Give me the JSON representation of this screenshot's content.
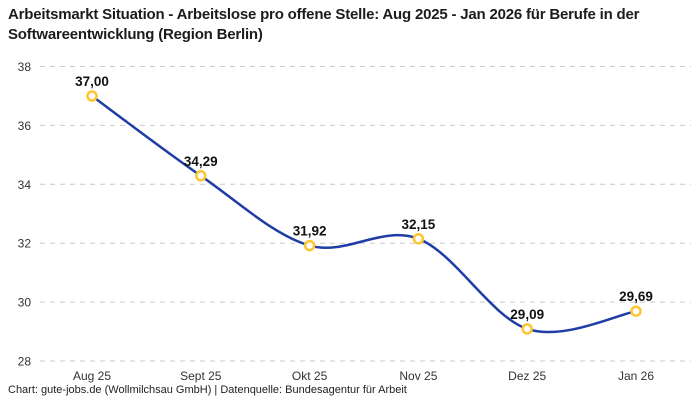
{
  "title": "Arbeitsmarkt Situation - Arbeitslose pro offene Stelle: Aug 2025 - Jan 2026 für Berufe in der Softwareentwicklung (Region Berlin)",
  "footer": "Chart: gute-jobs.de (Wollmilchsau GmbH) | Datenquelle: Bundesagentur für Arbeit",
  "colors": {
    "background": "#ffffff",
    "line": "#1f3da6",
    "marker_ring": "#ffc432",
    "marker_fill": "#ffffff",
    "grid": "#c9c9c9",
    "axis_text": "#333333",
    "value_label_text": "#111111",
    "title_text": "#1c1c1c"
  },
  "chart_data": {
    "type": "line",
    "smooth": true,
    "title": "Arbeitsmarkt Situation - Arbeitslose pro offene Stelle: Aug 2025 - Jan 2026 für Berufe in der Softwareentwicklung (Region Berlin)",
    "categories": [
      "Aug 25",
      "Sept 25",
      "Okt 25",
      "Nov 25",
      "Dez 25",
      "Jan 26"
    ],
    "values": [
      37.0,
      34.29,
      31.92,
      32.15,
      29.09,
      29.69
    ],
    "value_labels": [
      "37,00",
      "34,29",
      "31,92",
      "32,15",
      "29,09",
      "29,69"
    ],
    "xlabel": "",
    "ylabel": "",
    "ylim": [
      28,
      38
    ],
    "yticks": [
      38,
      36,
      34,
      32,
      30,
      28
    ],
    "grid": "horizontal-dashed",
    "legend": "none"
  }
}
